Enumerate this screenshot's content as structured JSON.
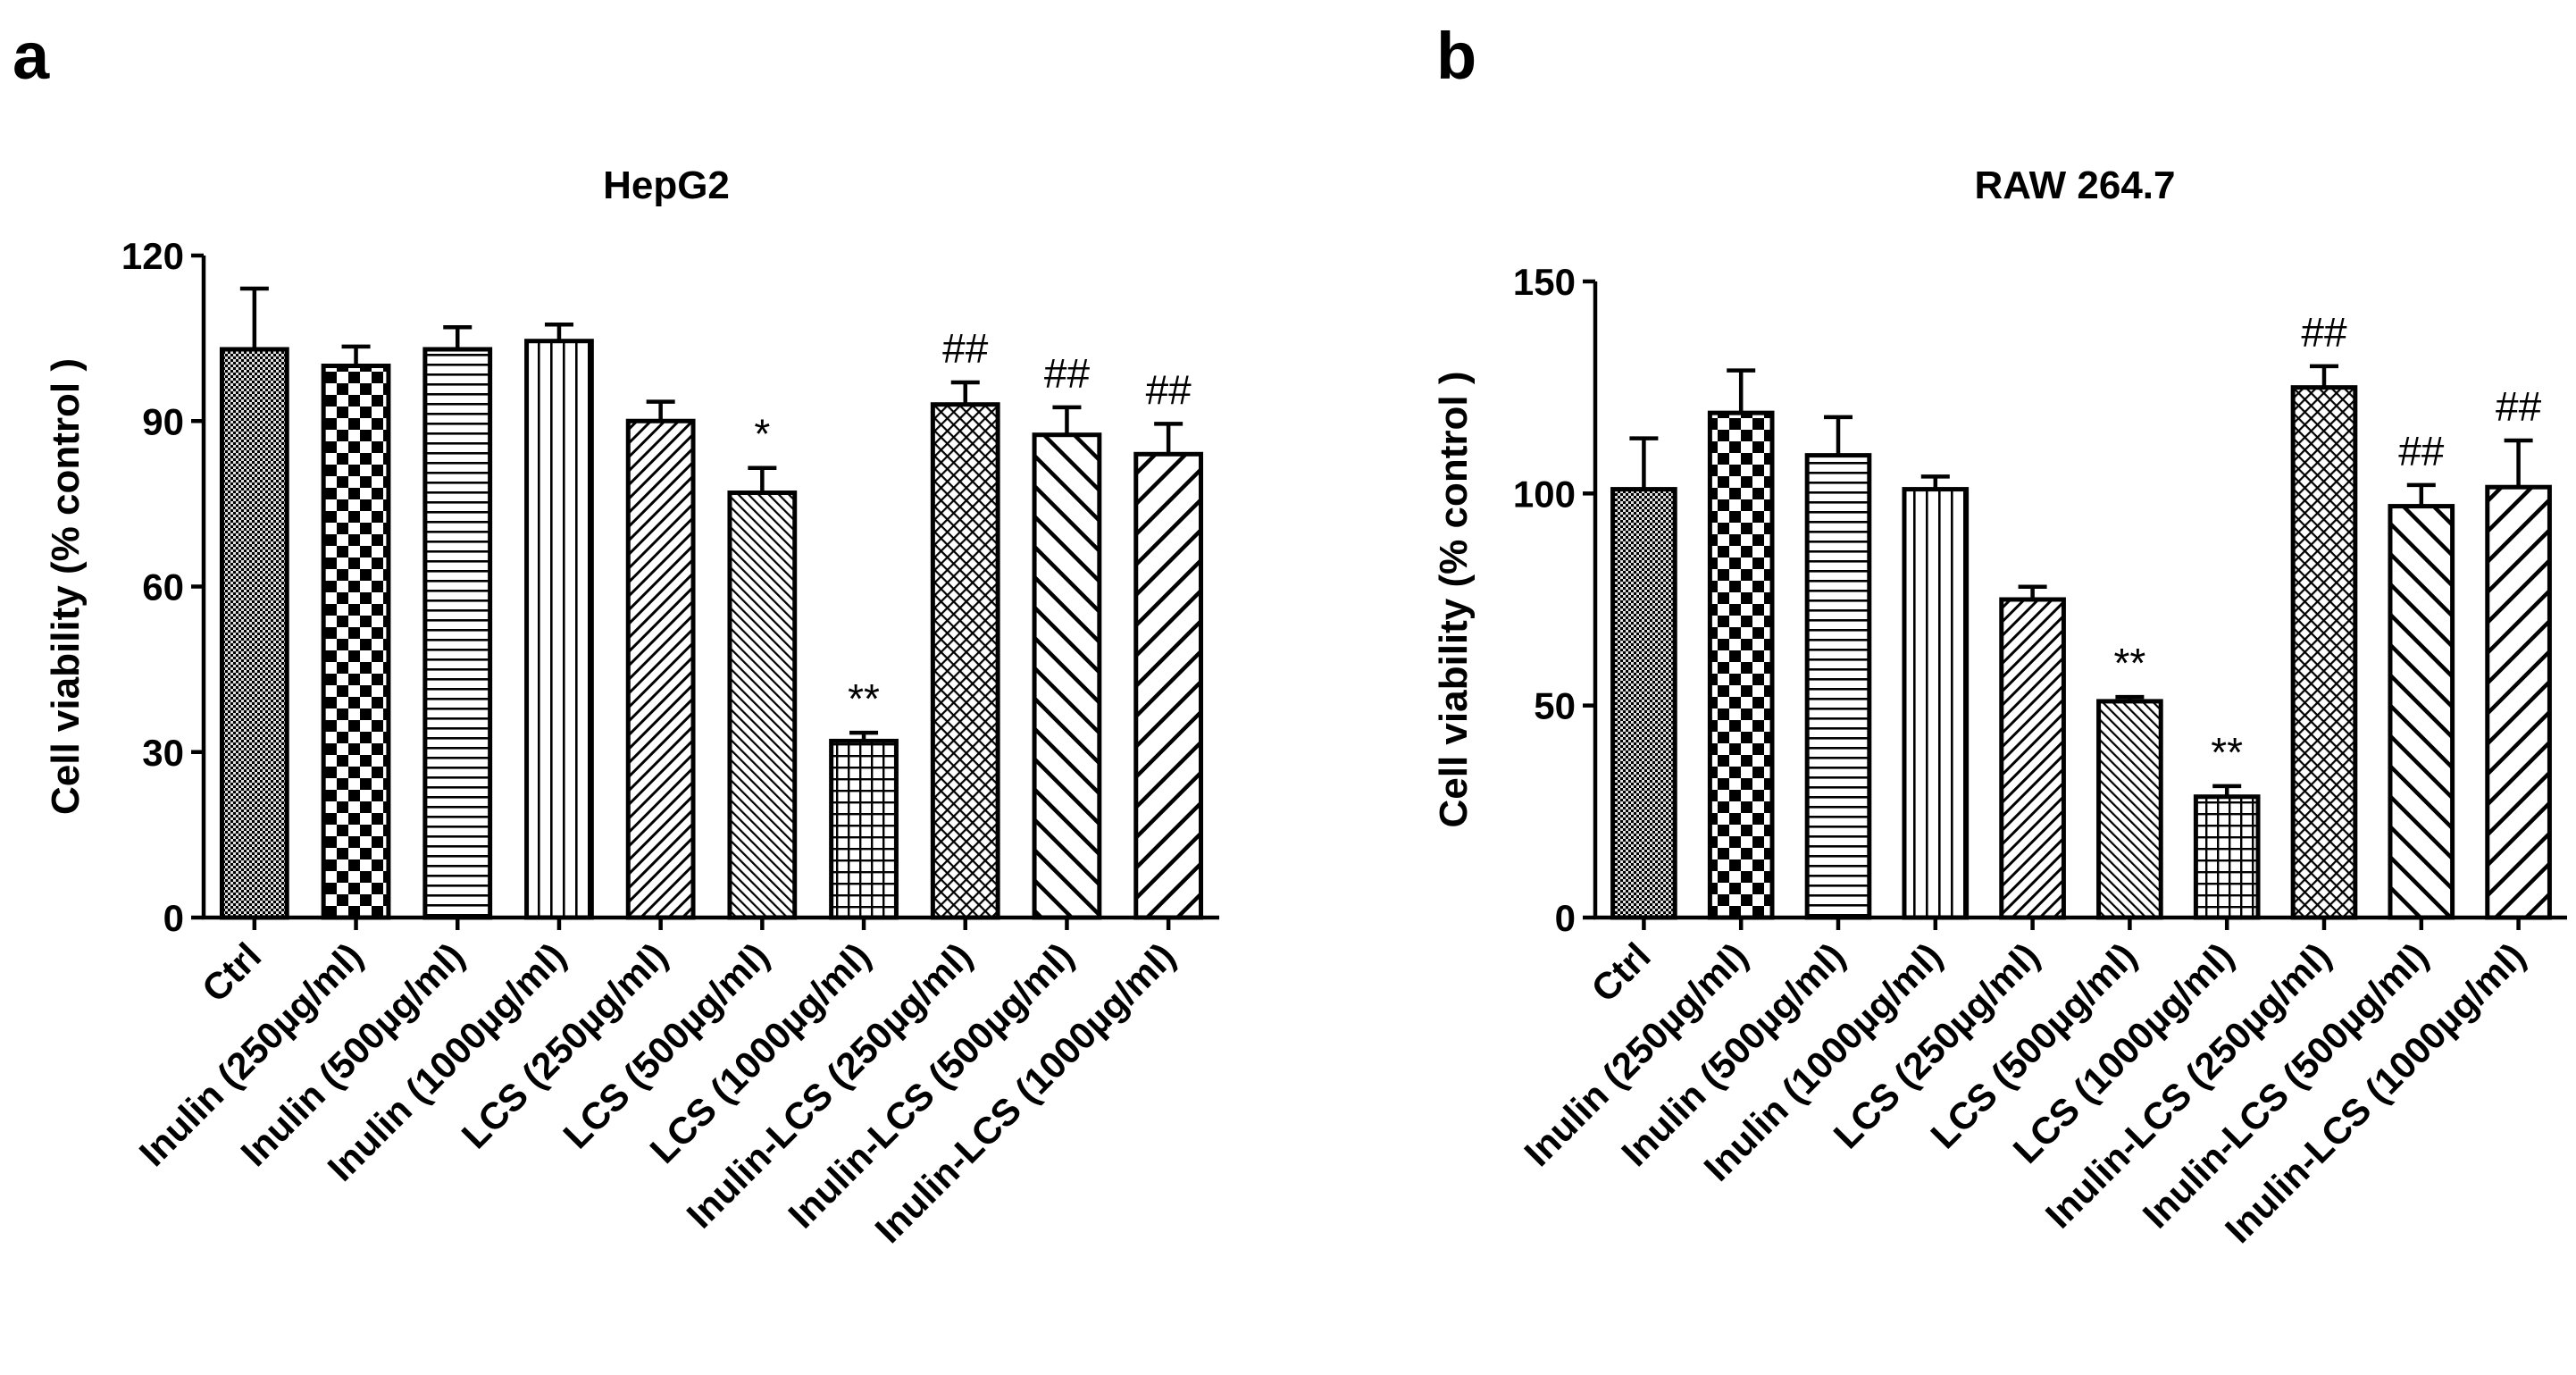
{
  "panels": [
    {
      "label": "a",
      "chart_data": {
        "type": "bar",
        "title": "HepG2",
        "xlabel": "",
        "ylabel": "Cell viability (% control )",
        "ylim": [
          0,
          120
        ],
        "yticks": [
          0,
          30,
          60,
          90,
          120
        ],
        "categories": [
          "Ctrl",
          "Inulin (250µg/ml)",
          "Inulin (500µg/ml)",
          "Inulin (1000µg/ml)",
          "LCS (250µg/ml)",
          "LCS (500µg/ml)",
          "LCS (1000µg/ml)",
          "Inulin-LCS (250µg/ml)",
          "Inulin-LCS (500µg/ml)",
          "Inulin-LCS (1000µg/ml)"
        ],
        "values": [
          103,
          100,
          103,
          104.5,
          90,
          77,
          32,
          93,
          87.5,
          84
        ],
        "errors": [
          11,
          3.5,
          4,
          3,
          3.5,
          4.5,
          1.5,
          4,
          5,
          5.5
        ],
        "annotations": [
          "",
          "",
          "",
          "",
          "",
          "*",
          "**",
          "##",
          "##",
          "##"
        ],
        "patterns": [
          "dots",
          "checker",
          "hlines",
          "vlines",
          "diag-right",
          "diag-right-fine",
          "grid",
          "crosshatch",
          "diag-left",
          "diag-right-wide"
        ]
      }
    },
    {
      "label": "b",
      "chart_data": {
        "type": "bar",
        "title": "RAW  264.7",
        "xlabel": "",
        "ylabel": "Cell viability (% control )",
        "ylim": [
          0,
          150
        ],
        "yticks": [
          0,
          50,
          100,
          150
        ],
        "categories": [
          "Ctrl",
          "Inulin (250µg/ml)",
          "Inulin (500µg/ml)",
          "Inulin (1000µg/ml)",
          "LCS (250µg/ml)",
          "LCS (500µg/ml)",
          "LCS (1000µg/ml)",
          "Inulin-LCS (250µg/ml)",
          "Inulin-LCS (500µg/ml)",
          "Inulin-LCS (1000µg/ml)"
        ],
        "values": [
          101,
          119,
          109,
          101,
          75,
          51,
          28.5,
          125,
          97,
          101.5
        ],
        "errors": [
          12,
          10,
          9,
          3,
          3,
          1,
          2.5,
          5,
          5,
          11
        ],
        "annotations": [
          "",
          "",
          "",
          "",
          "",
          "**",
          "**",
          "##",
          "##",
          "##"
        ],
        "patterns": [
          "dots",
          "checker",
          "hlines",
          "vlines",
          "diag-right",
          "diag-right-fine",
          "grid",
          "crosshatch",
          "diag-left",
          "diag-right-wide"
        ]
      }
    }
  ]
}
